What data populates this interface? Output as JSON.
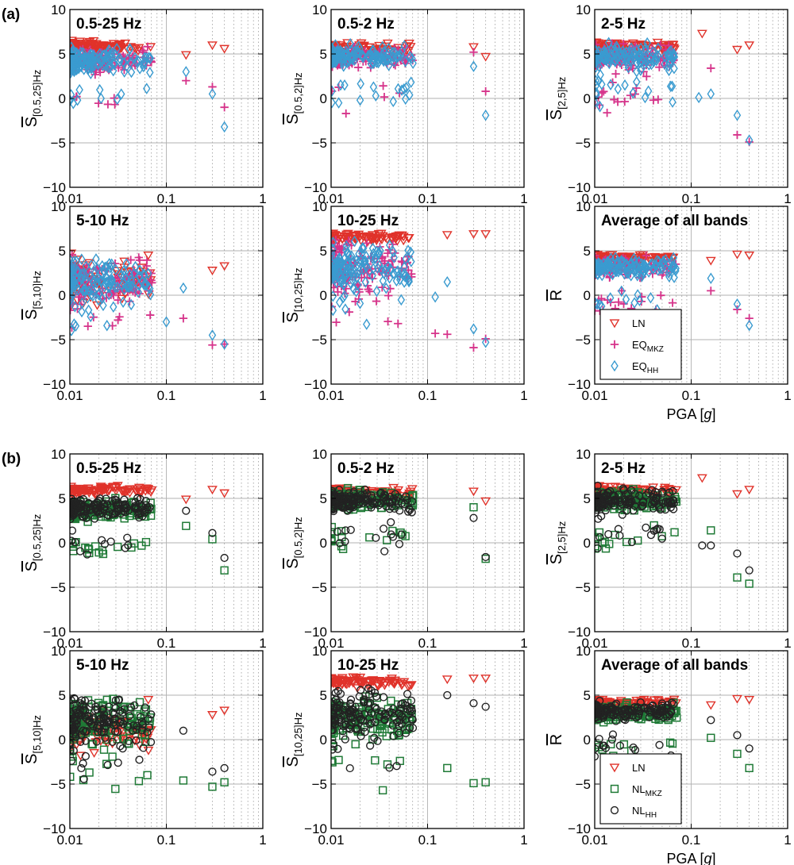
{
  "figure": {
    "panel_labels": [
      "(a)",
      "(b)"
    ],
    "x_scale": "log",
    "x_ticks": [
      "0.01",
      "0.1",
      "1"
    ],
    "y_ticks": [
      "10",
      "5",
      "0",
      "−5",
      "−10"
    ],
    "grid": "major horizontal solid, minor vertical dotted"
  },
  "colors": {
    "LN": "#e0322a",
    "EQ_MKZ": "#d6338a",
    "EQ_HH": "#3a9bd0",
    "NL_MKZ": "#1f7a36",
    "NL_HH": "#222222"
  },
  "legends": {
    "a": [
      {
        "series": "LN",
        "label": "LN",
        "sub": "",
        "marker": "down-triangle"
      },
      {
        "series": "EQ_MKZ",
        "label": "EQ",
        "sub": "MKZ",
        "marker": "plus"
      },
      {
        "series": "EQ_HH",
        "label": "EQ",
        "sub": "HH",
        "marker": "diamond"
      }
    ],
    "b": [
      {
        "series": "LN",
        "label": "LN",
        "sub": "",
        "marker": "down-triangle"
      },
      {
        "series": "NL_MKZ",
        "label": "NL",
        "sub": "MKZ",
        "marker": "square"
      },
      {
        "series": "NL_HH",
        "label": "NL",
        "sub": "HH",
        "marker": "circle"
      }
    ]
  },
  "chart_data": [
    {
      "type": "scatter",
      "group": "a",
      "title": "0.5-25 Hz",
      "ylabel": {
        "main": "S",
        "sub": "[0.5,25]Hz"
      },
      "xlabel": "",
      "xlim": [
        0.01,
        1
      ],
      "ylim": [
        -10,
        10
      ],
      "xscale": "log",
      "series": [
        {
          "name": "LN",
          "points": [
            [
              0.3,
              6.0
            ],
            [
              0.4,
              5.6
            ],
            [
              0.16,
              4.9
            ]
          ]
        },
        {
          "name": "EQ_MKZ",
          "points": [
            [
              0.3,
              1.3
            ],
            [
              0.4,
              -1.0
            ],
            [
              0.16,
              2.0
            ]
          ]
        },
        {
          "name": "EQ_HH",
          "points": [
            [
              0.3,
              0.5
            ],
            [
              0.4,
              -3.2
            ],
            [
              0.16,
              3.0
            ],
            [
              0.012,
              -0.2
            ],
            [
              0.031,
              -0.1
            ]
          ]
        }
      ]
    },
    {
      "type": "scatter",
      "group": "a",
      "title": "0.5-2 Hz",
      "ylabel": {
        "main": "S",
        "sub": "[0.5,2]Hz"
      },
      "xlabel": "",
      "xlim": [
        0.01,
        1
      ],
      "ylim": [
        -10,
        10
      ],
      "xscale": "log",
      "series": [
        {
          "name": "LN",
          "points": [
            [
              0.3,
              5.8
            ],
            [
              0.4,
              4.7
            ]
          ]
        },
        {
          "name": "EQ_MKZ",
          "points": [
            [
              0.3,
              5.2
            ],
            [
              0.4,
              0.8
            ]
          ]
        },
        {
          "name": "EQ_HH",
          "points": [
            [
              0.3,
              3.6
            ],
            [
              0.4,
              -1.9
            ],
            [
              0.012,
              -0.5
            ],
            [
              0.02,
              -0.2
            ]
          ]
        }
      ]
    },
    {
      "type": "scatter",
      "group": "a",
      "title": "2-5 Hz",
      "ylabel": {
        "main": "S",
        "sub": "[2,5]Hz"
      },
      "xlabel": "",
      "xlim": [
        0.01,
        1
      ],
      "ylim": [
        -10,
        10
      ],
      "xscale": "log",
      "series": [
        {
          "name": "LN",
          "points": [
            [
              0.3,
              5.5
            ],
            [
              0.4,
              6.0
            ],
            [
              0.13,
              7.3
            ]
          ]
        },
        {
          "name": "EQ_MKZ",
          "points": [
            [
              0.3,
              -4.1
            ],
            [
              0.4,
              -4.9
            ],
            [
              0.16,
              3.4
            ]
          ]
        },
        {
          "name": "EQ_HH",
          "points": [
            [
              0.3,
              -1.9
            ],
            [
              0.4,
              -4.7
            ],
            [
              0.12,
              0.1
            ],
            [
              0.16,
              0.5
            ]
          ]
        }
      ]
    },
    {
      "type": "scatter",
      "group": "a",
      "title": "5-10 Hz",
      "ylabel": {
        "main": "S",
        "sub": "[5,10]Hz"
      },
      "xlabel": "",
      "xlim": [
        0.01,
        1
      ],
      "ylim": [
        -10,
        10
      ],
      "xscale": "log",
      "series": [
        {
          "name": "LN",
          "points": [
            [
              0.3,
              2.8
            ],
            [
              0.4,
              3.3
            ],
            [
              0.065,
              4.5
            ]
          ]
        },
        {
          "name": "EQ_MKZ",
          "points": [
            [
              0.3,
              -5.6
            ],
            [
              0.4,
              -5.5
            ],
            [
              0.15,
              -2.6
            ]
          ]
        },
        {
          "name": "EQ_HH",
          "points": [
            [
              0.3,
              -4.5
            ],
            [
              0.4,
              -5.5
            ],
            [
              0.15,
              0.8
            ],
            [
              0.1,
              -3.0
            ]
          ]
        }
      ]
    },
    {
      "type": "scatter",
      "group": "a",
      "title": "10-25 Hz",
      "ylabel": {
        "main": "S",
        "sub": "[10,25]Hz"
      },
      "xlabel": "",
      "xlim": [
        0.01,
        1
      ],
      "ylim": [
        -10,
        10
      ],
      "xscale": "log",
      "series": [
        {
          "name": "LN",
          "points": [
            [
              0.3,
              6.9
            ],
            [
              0.4,
              6.9
            ],
            [
              0.16,
              6.8
            ]
          ]
        },
        {
          "name": "EQ_MKZ",
          "points": [
            [
              0.3,
              -5.9
            ],
            [
              0.4,
              -4.9
            ],
            [
              0.16,
              -4.4
            ],
            [
              0.12,
              -4.3
            ]
          ]
        },
        {
          "name": "EQ_HH",
          "points": [
            [
              0.3,
              -3.8
            ],
            [
              0.4,
              -5.3
            ],
            [
              0.16,
              1.5
            ],
            [
              0.12,
              -0.2
            ]
          ]
        }
      ]
    },
    {
      "type": "scatter",
      "group": "a",
      "title": "Average of all bands",
      "ylabel": {
        "main": "R",
        "sub": ""
      },
      "xlabel": "PGA [g]",
      "xlim": [
        0.01,
        1
      ],
      "ylim": [
        -10,
        10
      ],
      "xscale": "log",
      "series": [
        {
          "name": "LN",
          "points": [
            [
              0.3,
              4.6
            ],
            [
              0.4,
              4.5
            ],
            [
              0.16,
              3.9
            ]
          ]
        },
        {
          "name": "EQ_MKZ",
          "points": [
            [
              0.3,
              -1.6
            ],
            [
              0.4,
              -2.6
            ],
            [
              0.16,
              0.5
            ]
          ]
        },
        {
          "name": "EQ_HH",
          "points": [
            [
              0.3,
              -1.0
            ],
            [
              0.4,
              -3.4
            ],
            [
              0.16,
              1.9
            ]
          ]
        }
      ]
    },
    {
      "type": "scatter",
      "group": "b",
      "title": "0.5-25 Hz",
      "ylabel": {
        "main": "S",
        "sub": "[0.5,25]Hz"
      },
      "xlabel": "",
      "xlim": [
        0.01,
        1
      ],
      "ylim": [
        -10,
        10
      ],
      "xscale": "log",
      "series": [
        {
          "name": "LN",
          "points": [
            [
              0.3,
              6.0
            ],
            [
              0.4,
              5.6
            ],
            [
              0.16,
              4.9
            ]
          ]
        },
        {
          "name": "NL_MKZ",
          "points": [
            [
              0.3,
              0.4
            ],
            [
              0.4,
              -3.1
            ],
            [
              0.16,
              1.9
            ]
          ]
        },
        {
          "name": "NL_HH",
          "points": [
            [
              0.3,
              1.1
            ],
            [
              0.4,
              -1.7
            ],
            [
              0.16,
              3.6
            ]
          ]
        }
      ]
    },
    {
      "type": "scatter",
      "group": "b",
      "title": "0.5-2 Hz",
      "ylabel": {
        "main": "S",
        "sub": "[0.5,2]Hz"
      },
      "xlabel": "",
      "xlim": [
        0.01,
        1
      ],
      "ylim": [
        -10,
        10
      ],
      "xscale": "log",
      "series": [
        {
          "name": "LN",
          "points": [
            [
              0.3,
              5.8
            ],
            [
              0.4,
              4.7
            ]
          ]
        },
        {
          "name": "NL_MKZ",
          "points": [
            [
              0.3,
              4.0
            ],
            [
              0.4,
              -1.8
            ]
          ]
        },
        {
          "name": "NL_HH",
          "points": [
            [
              0.3,
              2.8
            ],
            [
              0.4,
              -1.6
            ]
          ]
        }
      ]
    },
    {
      "type": "scatter",
      "group": "b",
      "title": "2-5 Hz",
      "ylabel": {
        "main": "S",
        "sub": "[2,5]Hz"
      },
      "xlabel": "",
      "xlim": [
        0.01,
        1
      ],
      "ylim": [
        -10,
        10
      ],
      "xscale": "log",
      "series": [
        {
          "name": "LN",
          "points": [
            [
              0.3,
              5.5
            ],
            [
              0.4,
              6.0
            ],
            [
              0.13,
              7.3
            ]
          ]
        },
        {
          "name": "NL_MKZ",
          "points": [
            [
              0.3,
              -3.9
            ],
            [
              0.4,
              -4.6
            ],
            [
              0.16,
              1.4
            ]
          ]
        },
        {
          "name": "NL_HH",
          "points": [
            [
              0.3,
              -1.2
            ],
            [
              0.4,
              -3.1
            ],
            [
              0.13,
              -0.3
            ],
            [
              0.16,
              -0.3
            ]
          ]
        }
      ]
    },
    {
      "type": "scatter",
      "group": "b",
      "title": "5-10 Hz",
      "ylabel": {
        "main": "S",
        "sub": "[5,10]Hz"
      },
      "xlabel": "",
      "xlim": [
        0.01,
        1
      ],
      "ylim": [
        -10,
        10
      ],
      "xscale": "log",
      "series": [
        {
          "name": "LN",
          "points": [
            [
              0.3,
              2.8
            ],
            [
              0.4,
              3.3
            ],
            [
              0.065,
              4.5
            ]
          ]
        },
        {
          "name": "NL_MKZ",
          "points": [
            [
              0.3,
              -5.3
            ],
            [
              0.4,
              -4.8
            ],
            [
              0.15,
              -4.6
            ]
          ]
        },
        {
          "name": "NL_HH",
          "points": [
            [
              0.3,
              -3.6
            ],
            [
              0.4,
              -3.2
            ],
            [
              0.15,
              1.0
            ]
          ]
        }
      ]
    },
    {
      "type": "scatter",
      "group": "b",
      "title": "10-25 Hz",
      "ylabel": {
        "main": "S",
        "sub": "[10,25]Hz"
      },
      "xlabel": "",
      "xlim": [
        0.01,
        1
      ],
      "ylim": [
        -10,
        10
      ],
      "xscale": "log",
      "series": [
        {
          "name": "LN",
          "points": [
            [
              0.3,
              6.9
            ],
            [
              0.4,
              6.9
            ],
            [
              0.16,
              6.8
            ]
          ]
        },
        {
          "name": "NL_MKZ",
          "points": [
            [
              0.3,
              -4.9
            ],
            [
              0.4,
              -4.8
            ],
            [
              0.16,
              -3.2
            ]
          ]
        },
        {
          "name": "NL_HH",
          "points": [
            [
              0.3,
              4.1
            ],
            [
              0.4,
              3.7
            ],
            [
              0.16,
              5.0
            ]
          ]
        }
      ]
    },
    {
      "type": "scatter",
      "group": "b",
      "title": "Average of all bands",
      "ylabel": {
        "main": "R",
        "sub": ""
      },
      "xlabel": "PGA [g]",
      "xlim": [
        0.01,
        1
      ],
      "ylim": [
        -10,
        10
      ],
      "xscale": "log",
      "series": [
        {
          "name": "LN",
          "points": [
            [
              0.3,
              4.6
            ],
            [
              0.4,
              4.5
            ],
            [
              0.16,
              3.9
            ]
          ]
        },
        {
          "name": "NL_MKZ",
          "points": [
            [
              0.3,
              -1.6
            ],
            [
              0.4,
              -3.2
            ],
            [
              0.16,
              0.2
            ]
          ]
        },
        {
          "name": "NL_HH",
          "points": [
            [
              0.3,
              0.5
            ],
            [
              0.4,
              -1.0
            ],
            [
              0.16,
              2.2
            ]
          ]
        }
      ]
    }
  ]
}
